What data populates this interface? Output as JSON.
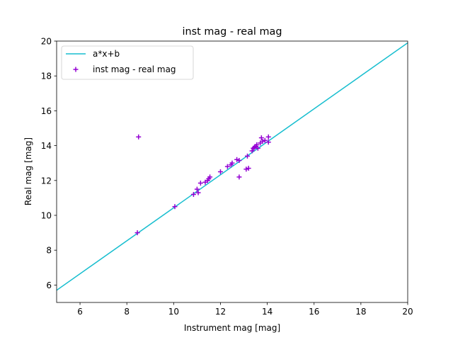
{
  "chart_data": {
    "type": "scatter",
    "title": "inst mag - real mag",
    "xlabel": "Instrument mag [mag]",
    "ylabel": "Real mag [mag]",
    "xlim": [
      5,
      20
    ],
    "ylim": [
      5,
      20
    ],
    "xticks": [
      6,
      8,
      10,
      12,
      14,
      16,
      18,
      20
    ],
    "yticks": [
      6,
      8,
      10,
      12,
      14,
      16,
      18,
      20
    ],
    "grid": false,
    "legend_position": "top-left",
    "series": [
      {
        "name": "a*x+b",
        "kind": "line",
        "color": "#17becf",
        "x": [
          5,
          20
        ],
        "y": [
          5.7,
          19.9
        ]
      },
      {
        "name": "inst mag - real mag",
        "kind": "scatter",
        "marker": "+",
        "color": "#9400d3",
        "x": [
          8.5,
          8.45,
          10.05,
          10.85,
          11.0,
          11.05,
          11.15,
          11.35,
          11.45,
          11.5,
          11.55,
          12.0,
          12.3,
          12.45,
          12.5,
          12.7,
          12.8,
          12.8,
          13.1,
          13.15,
          13.2,
          13.35,
          13.4,
          13.45,
          13.5,
          13.55,
          13.6,
          13.7,
          13.75,
          13.8,
          13.9,
          14.05,
          14.05
        ],
        "y": [
          14.5,
          9.0,
          10.5,
          11.2,
          11.5,
          11.3,
          11.85,
          11.9,
          12.0,
          12.1,
          12.2,
          12.5,
          12.8,
          12.9,
          13.0,
          13.2,
          13.15,
          12.2,
          12.65,
          13.4,
          12.7,
          13.7,
          13.85,
          13.9,
          13.95,
          14.05,
          13.85,
          14.15,
          14.45,
          14.25,
          14.3,
          14.5,
          14.2
        ]
      }
    ]
  }
}
